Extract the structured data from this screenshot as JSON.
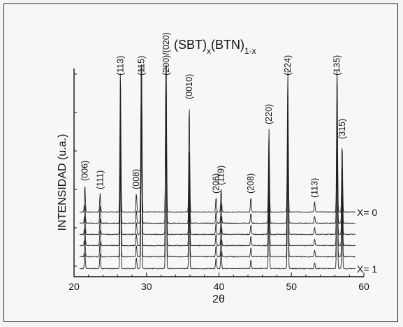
{
  "chart_data": {
    "type": "line",
    "title_parts": {
      "a": "(SBT)",
      "x": "x",
      "b": "(BTN)",
      "ex": "1-x"
    },
    "xlabel": "2θ",
    "ylabel": "INTENSIDAD (u.a.)",
    "xlim": [
      20,
      60
    ],
    "xticks": [
      20,
      30,
      40,
      50,
      60
    ],
    "series": [
      {
        "name": "X= 0"
      },
      {
        "name": ""
      },
      {
        "name": ""
      },
      {
        "name": ""
      },
      {
        "name": ""
      },
      {
        "name": "X= 1"
      }
    ],
    "peaks": [
      {
        "label": "(006)",
        "x": 21.5,
        "height": 0.13
      },
      {
        "label": "(111)",
        "x": 23.6,
        "height": 0.09
      },
      {
        "label": "(113)",
        "x": 26.4,
        "height": 0.69
      },
      {
        "label": "(008)",
        "x": 28.6,
        "height": 0.09
      },
      {
        "label": "(115)",
        "x": 29.3,
        "height": 1.0
      },
      {
        "label": "(200)/(020)",
        "x": 32.7,
        "height": 0.9
      },
      {
        "label": "(0010)",
        "x": 35.9,
        "height": 0.52
      },
      {
        "label": "(206)",
        "x": 39.6,
        "height": 0.07
      },
      {
        "label": "(119)",
        "x": 40.3,
        "height": 0.11
      },
      {
        "label": "(208)",
        "x": 44.4,
        "height": 0.07
      },
      {
        "label": "(220)",
        "x": 46.9,
        "height": 0.4
      },
      {
        "label": "(224)",
        "x": 49.5,
        "height": 0.69
      },
      {
        "label": "(113)",
        "x": 53.2,
        "height": 0.05
      },
      {
        "label": "(135)",
        "x": 56.3,
        "height": 0.71
      },
      {
        "label": "(315)",
        "x": 57.0,
        "height": 0.33
      }
    ]
  }
}
